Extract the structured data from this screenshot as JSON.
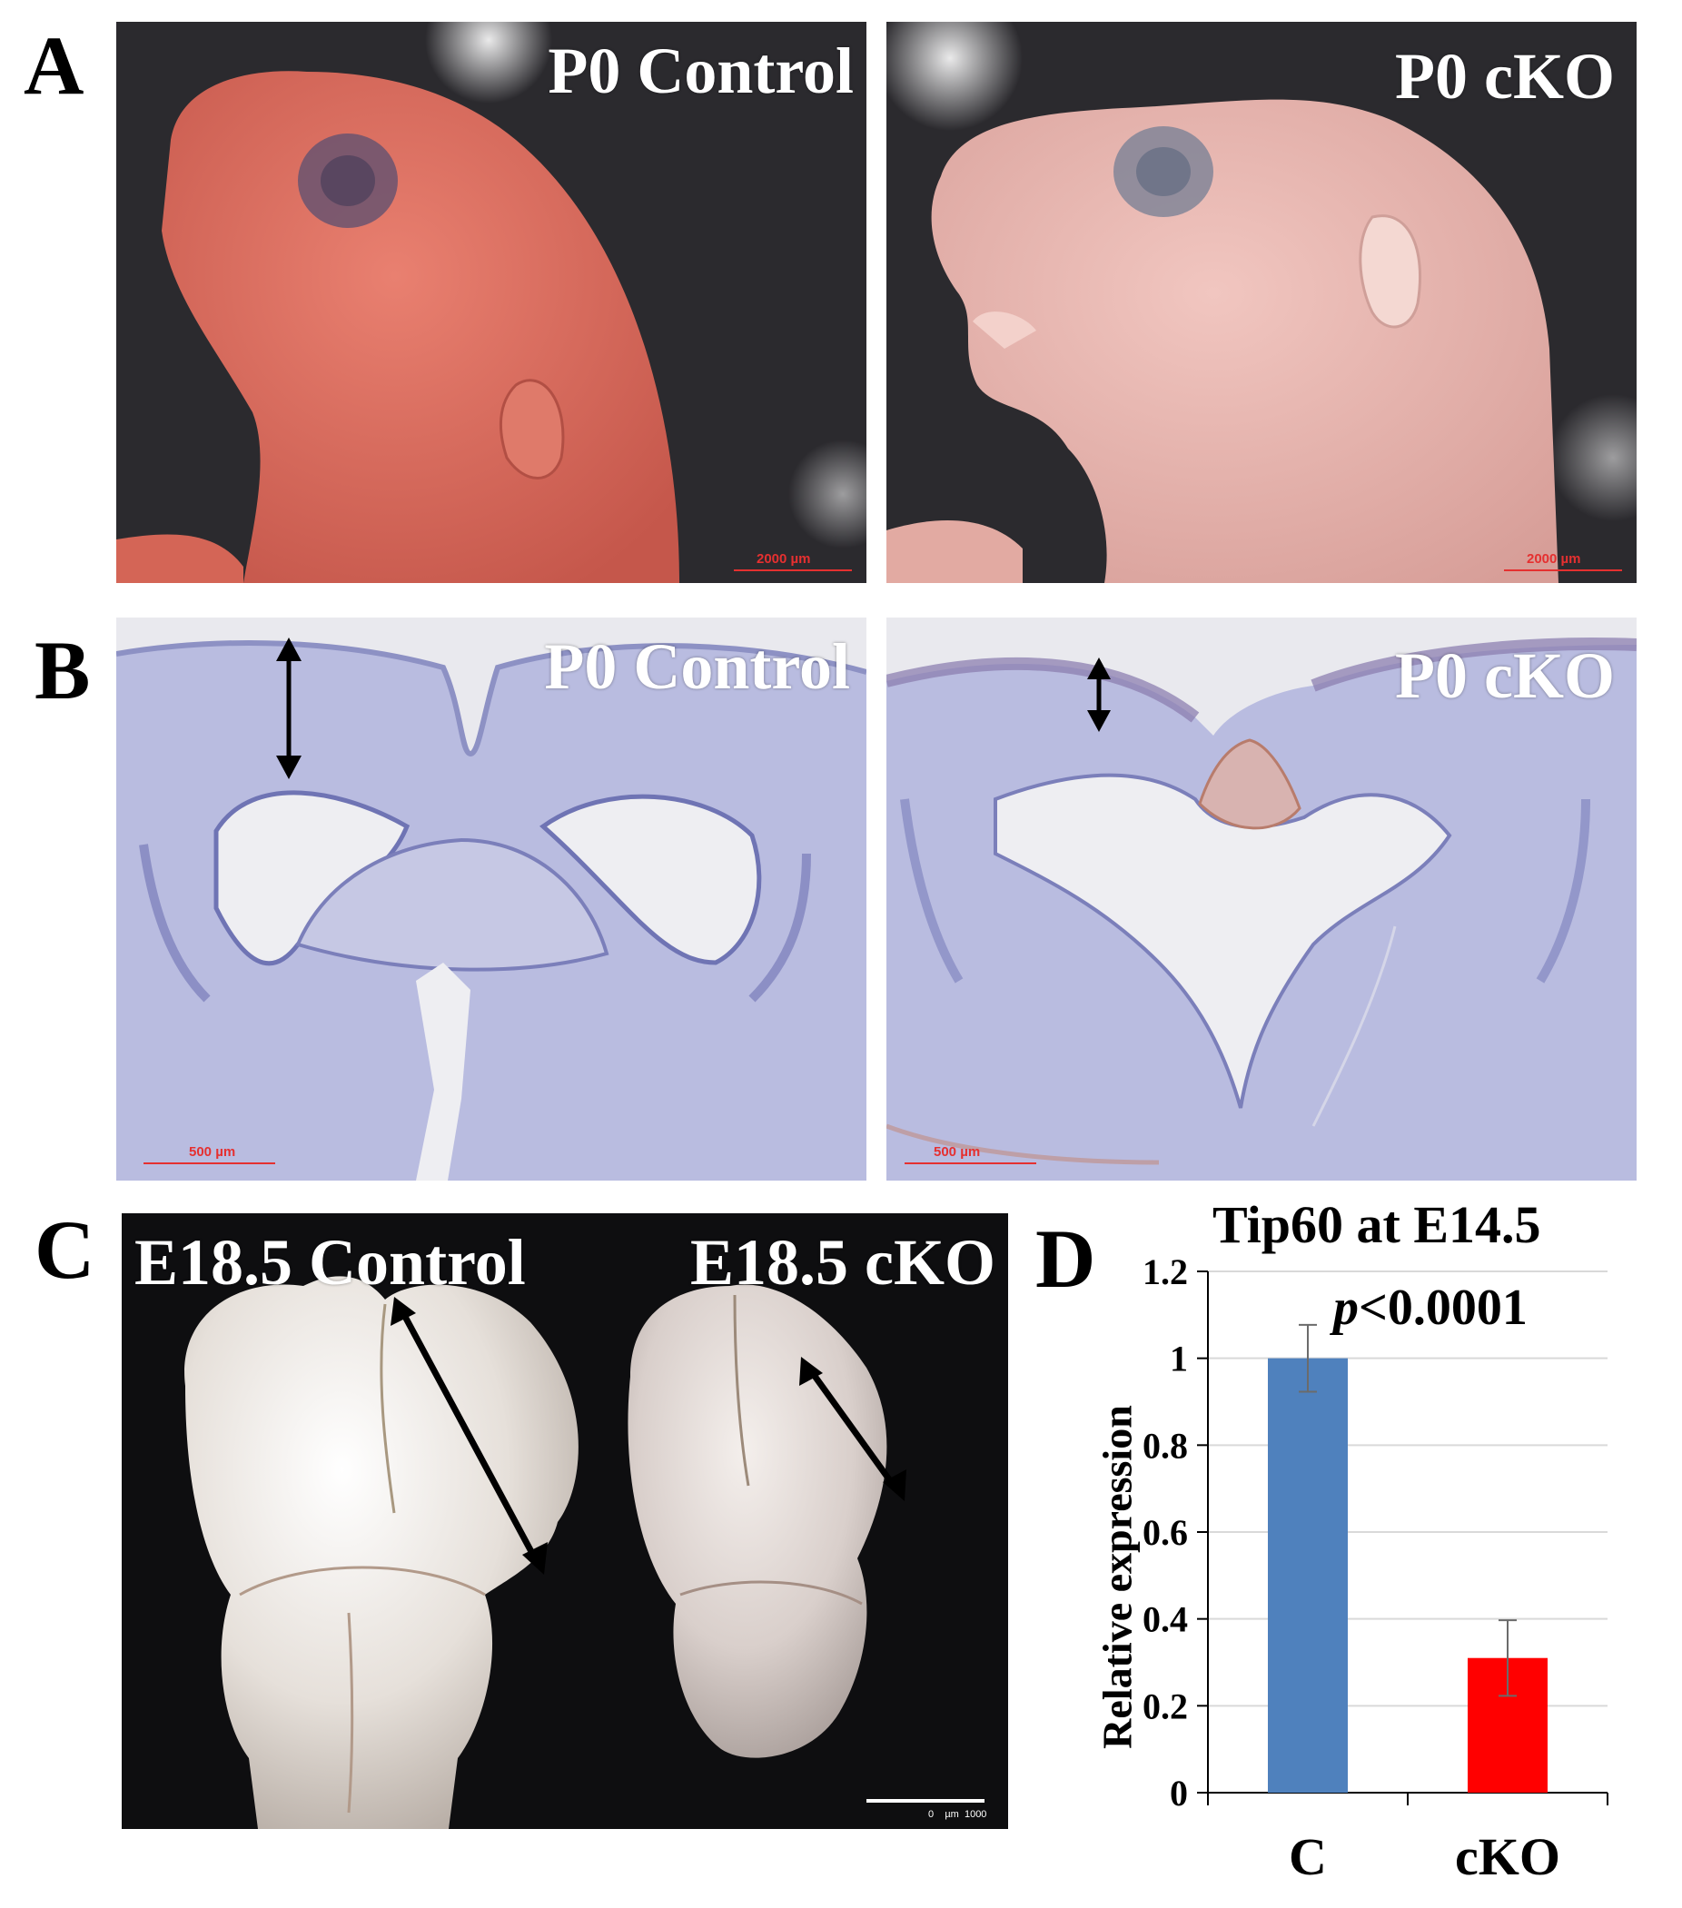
{
  "figure": {
    "panel_letters": [
      "A",
      "B",
      "C",
      "D"
    ],
    "panel_a": {
      "left_label": "P0 Control",
      "right_label": "P0 cKO",
      "left_scale": "2000 µm",
      "right_scale": "2000 µm"
    },
    "panel_b": {
      "left_label": "P0 Control",
      "right_label": "P0 cKO",
      "left_scale": "500 µm",
      "right_scale": "500 µm"
    },
    "panel_c": {
      "left_label": "E18.5 Control",
      "right_label": "E18.5 cKO",
      "scale": "0    µm  1000"
    },
    "colors": {
      "bar_control": "#4f81bd",
      "bar_cko": "#ff0000",
      "skin_control": "#d86a5c",
      "skin_cko": "#e9b6b0",
      "tissue_stain": "#8a8fc8"
    }
  },
  "chart_data": {
    "type": "bar",
    "title": "Tip60 at E14.5",
    "annotation": {
      "italic": "p",
      "text": "<0.0001"
    },
    "categories": [
      "C",
      "cKO"
    ],
    "values": [
      1.0,
      0.31
    ],
    "errors": [
      0.077,
      0.087
    ],
    "colors": [
      "#4f81bd",
      "#ff0000"
    ],
    "xlabel": "",
    "ylabel": "Relative expression",
    "ylim": [
      0,
      1.2
    ],
    "yticks": [
      "0",
      "0.2",
      "0.4",
      "0.6",
      "0.8",
      "1",
      "1.2"
    ],
    "grid": true
  }
}
